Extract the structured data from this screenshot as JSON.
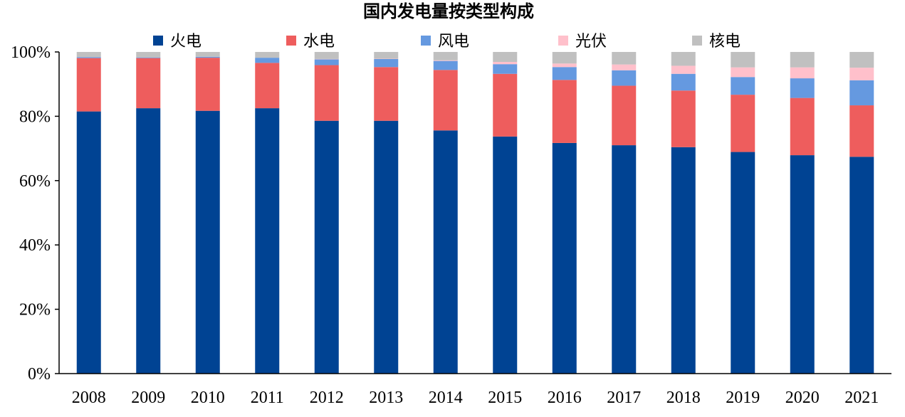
{
  "chart_data": {
    "type": "bar",
    "stacked": true,
    "title": "国内发电量按类型构成",
    "xlabel": "",
    "ylabel": "",
    "ylim": [
      0,
      100
    ],
    "y_ticks": [
      "0%",
      "20%",
      "40%",
      "60%",
      "80%",
      "100%"
    ],
    "y_tick_values": [
      0,
      20,
      40,
      60,
      80,
      100
    ],
    "grid": false,
    "legend_position": "top",
    "categories": [
      "2008",
      "2009",
      "2010",
      "2011",
      "2012",
      "2013",
      "2014",
      "2015",
      "2016",
      "2017",
      "2018",
      "2019",
      "2020",
      "2021"
    ],
    "series": [
      {
        "name": "火电",
        "color": "#004393",
        "values": [
          81.5,
          82.5,
          81.7,
          82.5,
          78.6,
          78.6,
          75.6,
          73.7,
          71.7,
          71.0,
          70.4,
          68.9,
          67.9,
          67.4
        ]
      },
      {
        "name": "水电",
        "color": "#ee5d5d",
        "values": [
          16.6,
          15.6,
          16.5,
          14.1,
          17.3,
          16.7,
          18.8,
          19.5,
          19.6,
          18.5,
          17.6,
          17.8,
          17.8,
          16.0
        ]
      },
      {
        "name": "风电",
        "color": "#6599e0",
        "values": [
          0.3,
          0.2,
          0.3,
          1.6,
          1.8,
          2.5,
          2.8,
          3.0,
          4.0,
          4.8,
          5.2,
          5.5,
          6.1,
          7.8
        ]
      },
      {
        "name": "光伏",
        "color": "#ffc0cb",
        "values": [
          0.0,
          0.0,
          0.0,
          0.0,
          0.1,
          0.1,
          0.2,
          0.7,
          1.1,
          1.8,
          2.5,
          3.0,
          3.4,
          3.9
        ]
      },
      {
        "name": "核电",
        "color": "#c0c0c0",
        "values": [
          1.6,
          1.7,
          1.5,
          1.8,
          2.2,
          2.1,
          2.6,
          3.1,
          3.6,
          3.9,
          4.3,
          4.8,
          4.8,
          4.9
        ]
      }
    ]
  }
}
